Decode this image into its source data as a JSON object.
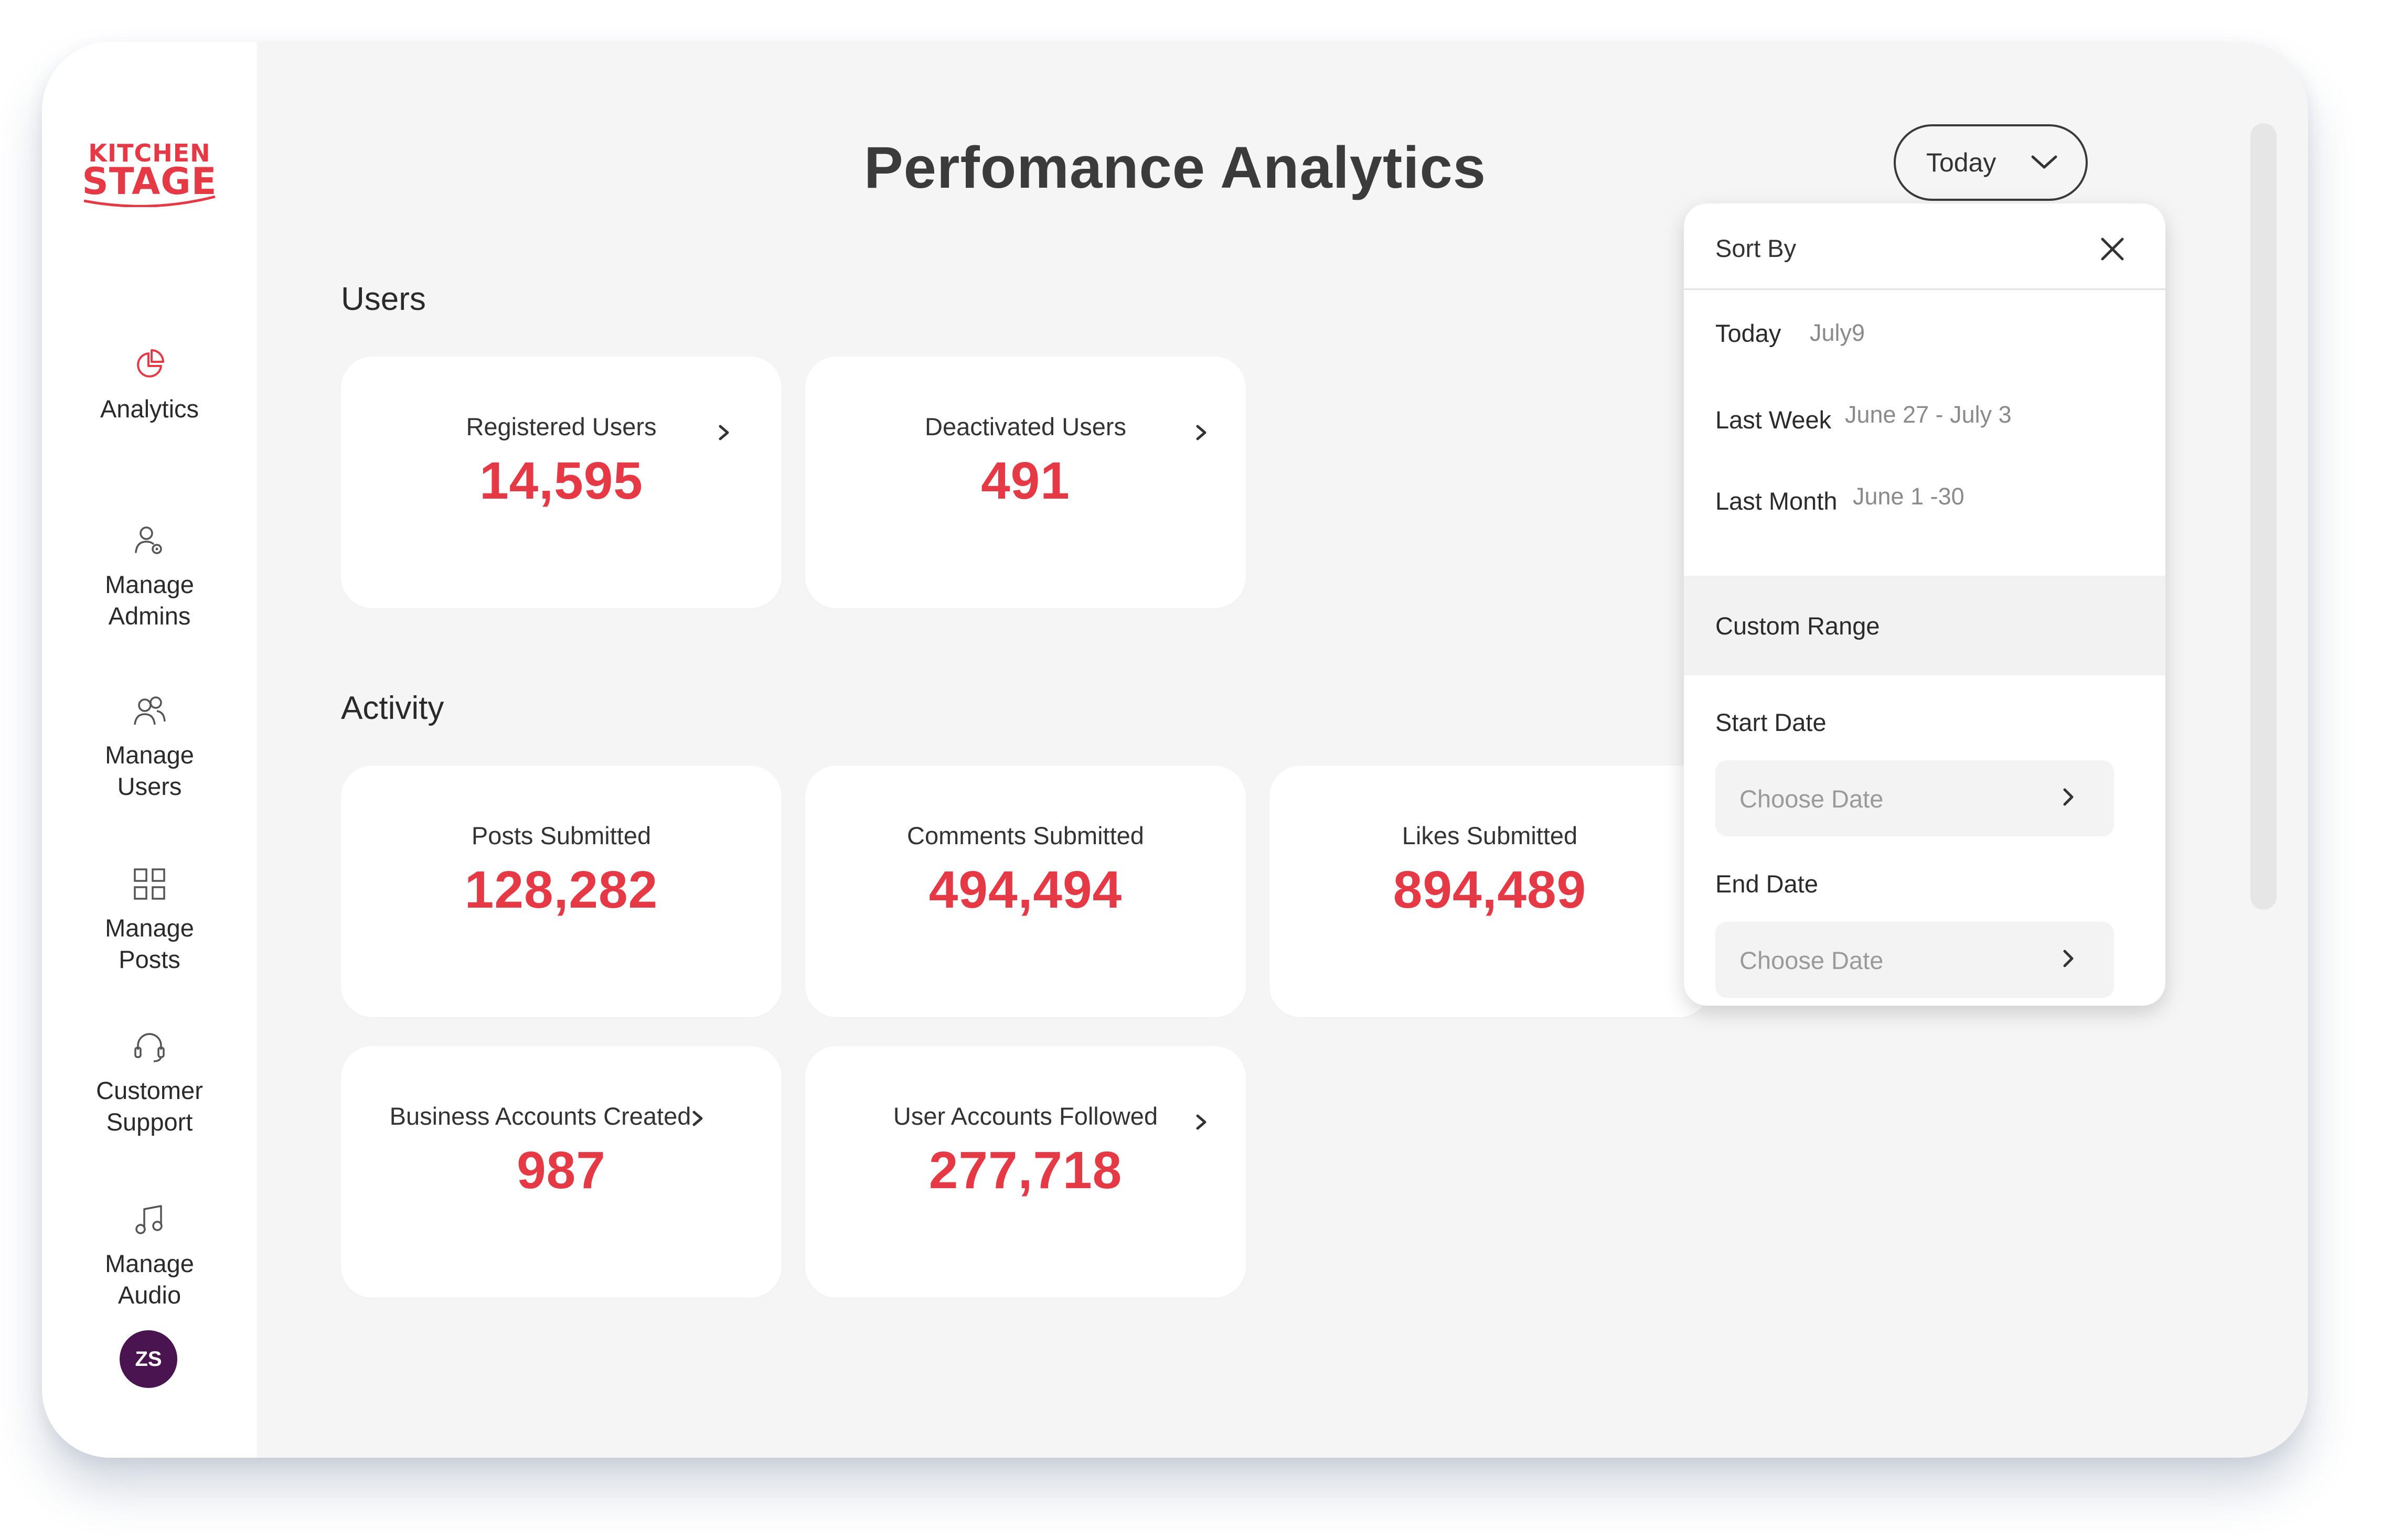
{
  "brand": {
    "line1": "KITCHEN",
    "line2": "STAGE",
    "color": "#e63946"
  },
  "sidebar": {
    "items": [
      {
        "label": "Analytics",
        "icon": "pie-chart-icon"
      },
      {
        "label": "Manage Admins",
        "icon": "admin-gear-icon"
      },
      {
        "label": "Manage Users",
        "icon": "users-icon"
      },
      {
        "label": "Manage Posts",
        "icon": "grid-icon"
      },
      {
        "label": "Customer Support",
        "icon": "headset-icon"
      },
      {
        "label": "Manage Audio",
        "icon": "music-note-icon"
      }
    ],
    "avatar_initials": "ZS"
  },
  "header": {
    "title": "Perfomance Analytics",
    "range_button": "Today"
  },
  "sections": {
    "users": {
      "title": "Users",
      "cards": [
        {
          "label": "Registered Users",
          "value": "14,595"
        },
        {
          "label": "Deactivated Users",
          "value": "491"
        }
      ]
    },
    "activity": {
      "title": "Activity",
      "cards": [
        {
          "label": "Posts Submitted",
          "value": "128,282"
        },
        {
          "label": "Comments Submitted",
          "value": "494,494"
        },
        {
          "label": "Likes Submitted",
          "value": "894,489"
        },
        {
          "label": "Business Accounts Created",
          "value": "987"
        },
        {
          "label": "User Accounts Followed",
          "value": "277,718"
        }
      ]
    }
  },
  "sort_dropdown": {
    "title": "Sort By",
    "options": [
      {
        "label": "Today",
        "range": "July9"
      },
      {
        "label": "Last Week",
        "range": "June 27 - July 3"
      },
      {
        "label": "Last Month",
        "range": "June 1 -30"
      },
      {
        "label": "Custom Range",
        "range": ""
      }
    ],
    "start_date_label": "Start Date",
    "end_date_label": "End Date",
    "date_placeholder": "Choose Date"
  },
  "colors": {
    "accent": "#e63946",
    "avatar": "#4a1450",
    "background": "#f5f5f5"
  }
}
